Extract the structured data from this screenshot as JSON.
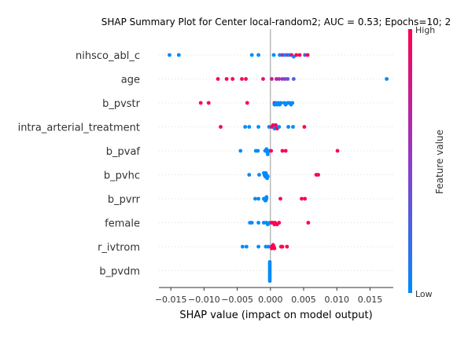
{
  "chart_data": {
    "type": "scatter",
    "title": "SHAP Summary Plot for Center local-random2; AUC = 0.53; Epochs=10; 2",
    "xlabel": "SHAP value (impact on model output)",
    "xlim": [
      -0.0168,
      0.0185
    ],
    "xticks": [
      -0.015,
      -0.01,
      -0.005,
      0.0,
      0.005,
      0.01,
      0.015
    ],
    "xtick_labels": [
      "−0.015",
      "−0.010",
      "−0.005",
      "0.000",
      "0.005",
      "0.010",
      "0.015"
    ],
    "colorbar": {
      "title": "Feature value",
      "high": "High",
      "low": "Low",
      "low_color": "#008bfb",
      "high_color": "#ff0052"
    },
    "features": [
      {
        "name": "nihsco_abl_c",
        "points": [
          [
            -0.0152,
            0.0
          ],
          [
            -0.0138,
            0.0
          ],
          [
            -0.0028,
            0.0
          ],
          [
            -0.0018,
            0.0
          ],
          [
            0.0005,
            0.0
          ],
          [
            0.0014,
            0.0
          ],
          [
            0.0018,
            0.6
          ],
          [
            0.0022,
            0.0
          ],
          [
            0.0026,
            0.5
          ],
          [
            0.0029,
            0.0
          ],
          [
            0.0032,
            0.9
          ],
          [
            0.0035,
            0.0
          ],
          [
            0.0039,
            1.0
          ],
          [
            0.0044,
            1.0
          ],
          [
            0.0052,
            0.2
          ],
          [
            0.0056,
            0.95
          ]
        ]
      },
      {
        "name": "age",
        "points": [
          [
            -0.0079,
            1.0
          ],
          [
            -0.0066,
            1.0
          ],
          [
            -0.0057,
            1.0
          ],
          [
            -0.0043,
            0.9
          ],
          [
            -0.0037,
            1.0
          ],
          [
            -0.0011,
            0.85
          ],
          [
            0.0002,
            0.75
          ],
          [
            0.0009,
            0.65
          ],
          [
            0.0013,
            0.6
          ],
          [
            0.0018,
            0.55
          ],
          [
            0.0022,
            0.45
          ],
          [
            0.0026,
            0.35
          ],
          [
            0.0035,
            0.25
          ],
          [
            0.0175,
            0.0
          ]
        ]
      },
      {
        "name": "b_pvstr",
        "points": [
          [
            -0.0105,
            1.0
          ],
          [
            -0.0093,
            1.0
          ],
          [
            -0.0035,
            1.0
          ],
          [
            0.0006,
            0.9
          ],
          [
            0.0008,
            0.0
          ],
          [
            0.0012,
            0.0
          ],
          [
            0.0016,
            0.0
          ],
          [
            0.0021,
            0.0
          ],
          [
            0.0026,
            0.0
          ],
          [
            0.0029,
            0.0
          ],
          [
            0.0033,
            0.0
          ],
          [
            0.0006,
            0.0
          ],
          [
            0.001,
            0.0
          ],
          [
            0.0014,
            0.0
          ],
          [
            0.0023,
            0.0
          ],
          [
            0.0031,
            0.0
          ]
        ]
      },
      {
        "name": "intra_arterial_treatment",
        "points": [
          [
            -0.0075,
            1.0
          ],
          [
            -0.0038,
            0.0
          ],
          [
            -0.0032,
            0.0
          ],
          [
            -0.0018,
            0.0
          ],
          [
            -0.0002,
            0.0
          ],
          [
            0.0002,
            1.0
          ],
          [
            0.0004,
            1.0
          ],
          [
            0.0006,
            0.0
          ],
          [
            0.0008,
            0.0
          ],
          [
            0.001,
            1.0
          ],
          [
            0.0013,
            0.0
          ],
          [
            0.0004,
            0.9
          ],
          [
            0.0008,
            0.9
          ],
          [
            0.0027,
            0.0
          ],
          [
            0.0034,
            0.0
          ],
          [
            0.0051,
            1.0
          ]
        ]
      },
      {
        "name": "b_pvaf",
        "points": [
          [
            -0.0045,
            0.0
          ],
          [
            -0.0022,
            0.0
          ],
          [
            -0.0019,
            0.0
          ],
          [
            -0.0008,
            0.0
          ],
          [
            -0.0006,
            0.0
          ],
          [
            -0.0004,
            0.0
          ],
          [
            -0.0003,
            0.0
          ],
          [
            -0.0006,
            0.0
          ],
          [
            -0.0004,
            0.0
          ],
          [
            0.0001,
            1.0
          ],
          [
            0.0018,
            1.0
          ],
          [
            0.0023,
            1.0
          ],
          [
            0.0101,
            1.0
          ]
        ]
      },
      {
        "name": "b_pvhc",
        "points": [
          [
            -0.0032,
            0.0
          ],
          [
            -0.0017,
            0.0
          ],
          [
            -0.0009,
            0.0
          ],
          [
            -0.0008,
            0.0
          ],
          [
            -0.0006,
            0.0
          ],
          [
            -0.0004,
            0.0
          ],
          [
            -0.001,
            0.0
          ],
          [
            -0.0007,
            0.0
          ],
          [
            -0.0005,
            0.0
          ],
          [
            0.0069,
            0.95
          ],
          [
            0.0072,
            0.95
          ]
        ]
      },
      {
        "name": "b_pvrr",
        "points": [
          [
            -0.0023,
            0.0
          ],
          [
            -0.0018,
            0.0
          ],
          [
            -0.001,
            0.0
          ],
          [
            -0.0008,
            0.0
          ],
          [
            -0.0006,
            0.0
          ],
          [
            -0.0007,
            0.0
          ],
          [
            -0.0006,
            0.0
          ],
          [
            0.0015,
            1.0
          ],
          [
            0.0047,
            1.0
          ],
          [
            0.0052,
            1.0
          ]
        ]
      },
      {
        "name": "female",
        "points": [
          [
            -0.0031,
            0.0
          ],
          [
            -0.0028,
            0.0
          ],
          [
            -0.0018,
            0.0
          ],
          [
            -0.001,
            0.0
          ],
          [
            -0.0006,
            0.0
          ],
          [
            -0.0004,
            0.0
          ],
          [
            -0.0001,
            0.0
          ],
          [
            0.0002,
            1.0
          ],
          [
            0.0004,
            1.0
          ],
          [
            0.0007,
            1.0
          ],
          [
            0.001,
            1.0
          ],
          [
            0.0006,
            1.0
          ],
          [
            0.0013,
            1.0
          ],
          [
            0.0057,
            1.0
          ]
        ]
      },
      {
        "name": "r_ivtrom",
        "points": [
          [
            -0.0042,
            0.0
          ],
          [
            -0.0036,
            0.0
          ],
          [
            -0.0018,
            0.0
          ],
          [
            -0.0007,
            0.0
          ],
          [
            -0.0003,
            0.0
          ],
          [
            0.0002,
            1.0
          ],
          [
            0.0005,
            1.0
          ],
          [
            0.0002,
            1.0
          ],
          [
            0.0006,
            1.0
          ],
          [
            0.0004,
            1.0
          ],
          [
            0.0016,
            1.0
          ],
          [
            0.0018,
            1.0
          ],
          [
            0.0025,
            1.0
          ]
        ]
      },
      {
        "name": "b_pvdm",
        "points": [
          [
            -0.0001,
            0.0
          ],
          [
            -0.0001,
            0.0
          ],
          [
            -0.0001,
            0.0
          ],
          [
            -0.0001,
            0.0
          ],
          [
            -0.0001,
            0.0
          ],
          [
            -0.0001,
            0.0
          ],
          [
            -0.0001,
            0.0
          ],
          [
            -0.0001,
            0.0
          ],
          [
            -0.0001,
            0.0
          ],
          [
            -0.0001,
            0.0
          ],
          [
            -0.0001,
            0.0
          ],
          [
            -0.0001,
            0.0
          ]
        ]
      }
    ]
  }
}
